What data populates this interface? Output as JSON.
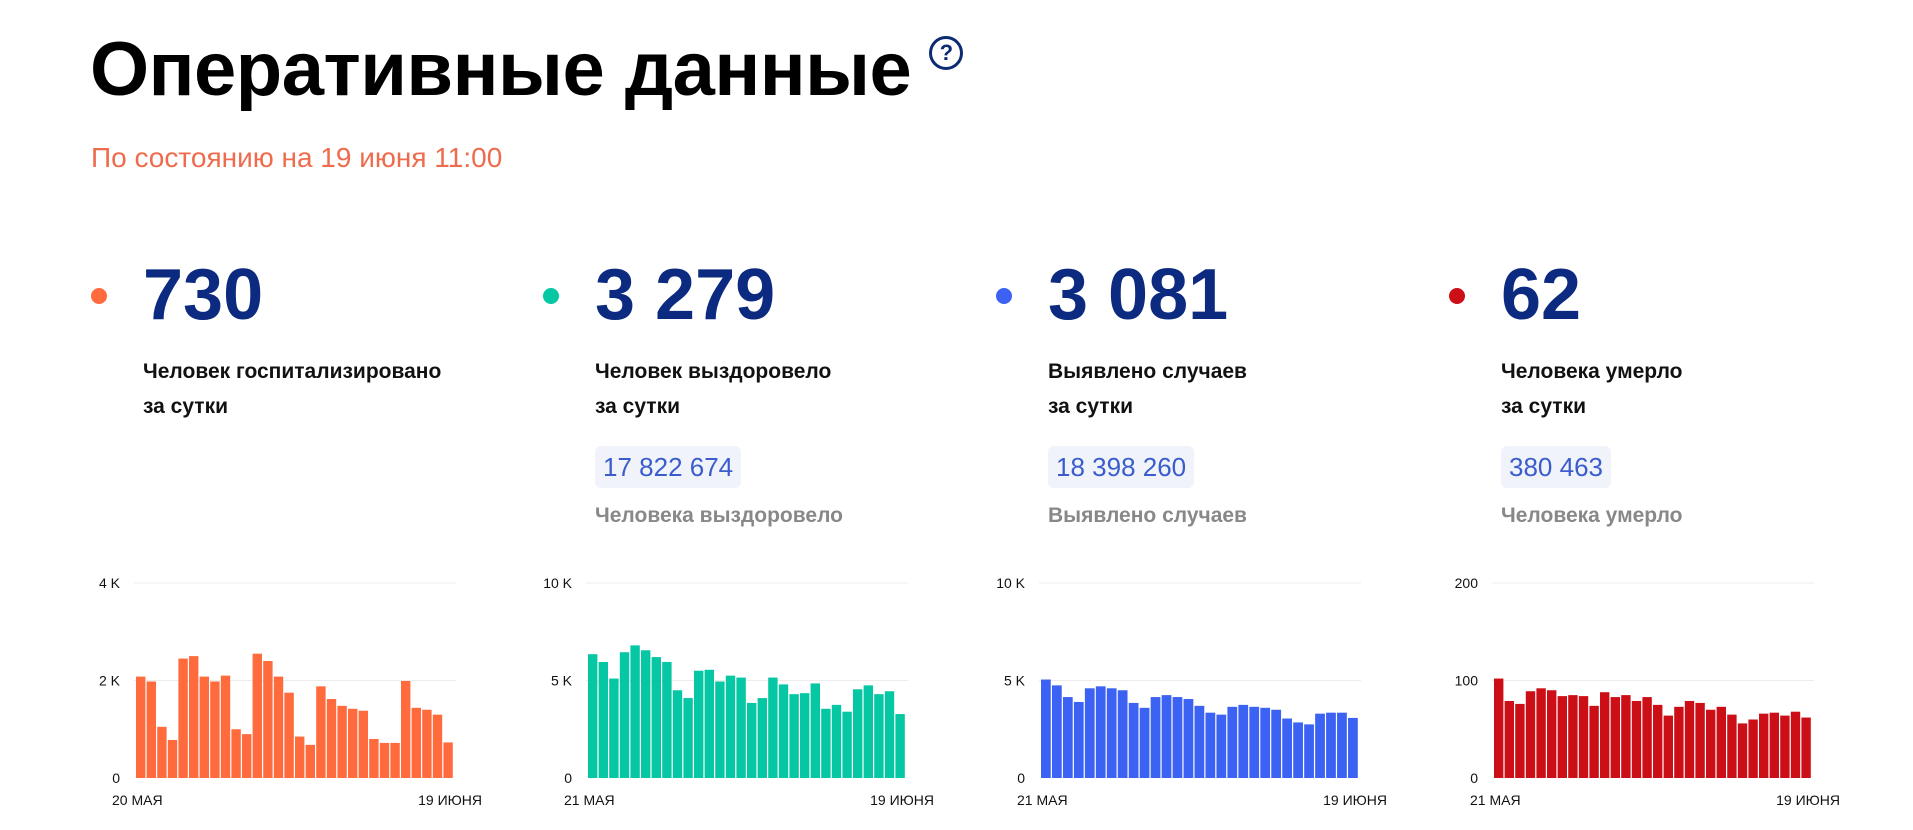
{
  "header": {
    "title": "Оперативные данные",
    "help_icon": "question-mark-icon",
    "subtitle": "По состоянию на 19 июня 11:00"
  },
  "cards": [
    {
      "id": "hospitalized",
      "value": "730",
      "desc_line1": "Человек госпитализировано",
      "desc_line2": "за сутки",
      "total": "",
      "total_label": "",
      "color": "#ff6b3d",
      "chart_data": {
        "type": "bar",
        "x_start_label": "20 МАЯ",
        "x_end_label": "19 ИЮНЯ",
        "y_ticks": [
          0,
          2000,
          4000
        ],
        "y_tick_labels": [
          "0",
          "2 K",
          "4 K"
        ],
        "ylim": [
          0,
          4000
        ],
        "grid": true,
        "values": [
          2080,
          1980,
          1050,
          780,
          2450,
          2500,
          2080,
          1980,
          2100,
          1000,
          900,
          2550,
          2400,
          2080,
          1750,
          850,
          680,
          1880,
          1620,
          1480,
          1420,
          1380,
          800,
          720,
          720,
          1990,
          1440,
          1400,
          1300,
          730
        ]
      }
    },
    {
      "id": "recovered",
      "value": "3 279",
      "desc_line1": "Человек выздоровело",
      "desc_line2": "за сутки",
      "total": "17 822 674",
      "total_label": "Человека выздоровело",
      "color": "#06c7a4",
      "chart_data": {
        "type": "bar",
        "x_start_label": "21 МАЯ",
        "x_end_label": "19 ИЮНЯ",
        "y_ticks": [
          0,
          5000,
          10000
        ],
        "y_tick_labels": [
          "0",
          "5 K",
          "10 K"
        ],
        "ylim": [
          0,
          10000
        ],
        "grid": true,
        "values": [
          6350,
          5950,
          5100,
          6450,
          6800,
          6550,
          6200,
          5950,
          4500,
          4100,
          5500,
          5550,
          4950,
          5250,
          5150,
          3850,
          4100,
          5150,
          4800,
          4300,
          4350,
          4850,
          3550,
          3750,
          3400,
          4550,
          4750,
          4300,
          4450,
          3279
        ]
      }
    },
    {
      "id": "cases",
      "value": "3 081",
      "desc_line1": "Выявлено случаев",
      "desc_line2": "за сутки",
      "total": "18 398 260",
      "total_label": "Выявлено случаев",
      "color": "#3b62f2",
      "chart_data": {
        "type": "bar",
        "x_start_label": "21 МАЯ",
        "x_end_label": "19 ИЮНЯ",
        "y_ticks": [
          0,
          5000,
          10000
        ],
        "y_tick_labels": [
          "0",
          "5 K",
          "10 K"
        ],
        "ylim": [
          0,
          10000
        ],
        "grid": true,
        "values": [
          5050,
          4750,
          4150,
          3900,
          4600,
          4700,
          4600,
          4500,
          3850,
          3600,
          4150,
          4250,
          4150,
          4050,
          3700,
          3350,
          3250,
          3650,
          3750,
          3650,
          3600,
          3500,
          3050,
          2850,
          2750,
          3300,
          3350,
          3350,
          3081
        ]
      }
    },
    {
      "id": "deaths",
      "value": "62",
      "desc_line1": "Человека умерло",
      "desc_line2": "за сутки",
      "total": "380 463",
      "total_label": "Человека умерло",
      "color": "#cc0f16",
      "chart_data": {
        "type": "bar",
        "x_start_label": "21 МАЯ",
        "x_end_label": "19 ИЮНЯ",
        "y_ticks": [
          0,
          100,
          200
        ],
        "y_tick_labels": [
          "0",
          "100",
          "200"
        ],
        "ylim": [
          0,
          200
        ],
        "grid": true,
        "values": [
          102,
          79,
          76,
          89,
          92,
          90,
          84,
          85,
          84,
          74,
          88,
          83,
          85,
          79,
          83,
          75,
          64,
          73,
          79,
          77,
          70,
          73,
          65,
          56,
          60,
          66,
          67,
          64,
          68,
          62
        ]
      }
    }
  ]
}
